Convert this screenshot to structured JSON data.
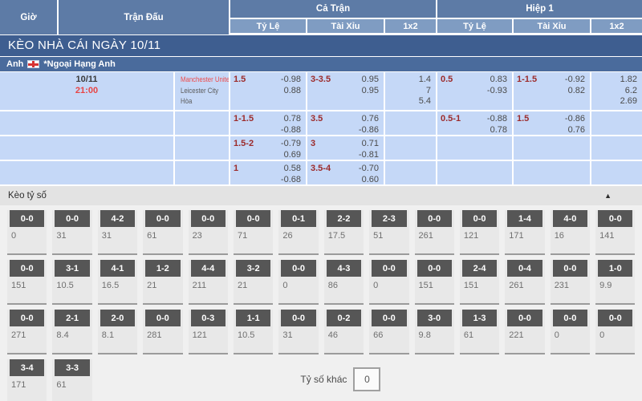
{
  "colors": {
    "header_dark_blue": "#5d7ba6",
    "header_light_blue": "#7f9cc2",
    "banner_blue": "#3e5e90",
    "league_blue": "#4a6b9c",
    "row_light_blue": "#c5d8f7",
    "handicap_red": "#9c2b2b",
    "team_red": "#ef4c4c",
    "score_box_gray": "#565656"
  },
  "icons": {
    "caret_up": "▲",
    "england_flag": "st-george-cross"
  },
  "header": {
    "time": "Giờ",
    "match": "Trận Đấu",
    "full": "Cả Trận",
    "half": "Hiệp 1",
    "hdp": "Tỷ Lệ",
    "ou": "Tài Xỉu",
    "x12": "1x2"
  },
  "banner": {
    "title": "KÈO NHÀ CÁI NGÀY 10/11"
  },
  "league": {
    "country": "Anh",
    "name": "*Ngoại Hạng Anh"
  },
  "odds_rows": [
    {
      "date": "10/11",
      "time": "21:00",
      "teams": [
        "Manchester United",
        "Leicester City",
        "Hòa"
      ],
      "ft_hdp": {
        "hc": "1.5",
        "v1": "-0.98",
        "v2": "0.88"
      },
      "ft_ou": {
        "hc": "3-3.5",
        "v1": "0.95",
        "v2": "0.95"
      },
      "ft_1x2": [
        "1.4",
        "7",
        "5.4"
      ],
      "h1_hdp": {
        "hc": "0.5",
        "v1": "0.83",
        "v2": "-0.93"
      },
      "h1_ou": {
        "hc": "1-1.5",
        "v1": "-0.92",
        "v2": "0.82"
      },
      "h1_1x2": [
        "1.82",
        "6.2",
        "2.69"
      ]
    },
    {
      "ft_hdp": {
        "hc": "1-1.5",
        "v1": "0.78",
        "v2": "-0.88"
      },
      "ft_ou": {
        "hc": "3.5",
        "v1": "0.76",
        "v2": "-0.86"
      },
      "ft_1x2": [],
      "h1_hdp": {
        "hc": "0.5-1",
        "v1": "-0.88",
        "v2": "0.78"
      },
      "h1_ou": {
        "hc": "1.5",
        "v1": "-0.86",
        "v2": "0.76"
      },
      "h1_1x2": []
    },
    {
      "ft_hdp": {
        "hc": "1.5-2",
        "v1": "-0.79",
        "v2": "0.69"
      },
      "ft_ou": {
        "hc": "3",
        "v1": "0.71",
        "v2": "-0.81"
      },
      "ft_1x2": [],
      "h1_hdp": null,
      "h1_ou": null,
      "h1_1x2": []
    },
    {
      "ft_hdp": {
        "hc": "1",
        "v1": "0.58",
        "v2": "-0.68"
      },
      "ft_ou": {
        "hc": "3.5-4",
        "v1": "-0.70",
        "v2": "0.60"
      },
      "ft_1x2": [],
      "h1_hdp": null,
      "h1_ou": null,
      "h1_1x2": []
    }
  ],
  "correct_score": {
    "section_title": "Kèo tỷ số",
    "other_label": "Tỷ số khác",
    "other_value": "0",
    "rows": [
      [
        {
          "s": "0-0",
          "o": "0"
        },
        {
          "s": "0-0",
          "o": "31"
        },
        {
          "s": "4-2",
          "o": "31"
        },
        {
          "s": "0-0",
          "o": "61"
        },
        {
          "s": "0-0",
          "o": "23"
        },
        {
          "s": "0-0",
          "o": "71"
        },
        {
          "s": "0-1",
          "o": "26"
        },
        {
          "s": "2-2",
          "o": "17.5"
        },
        {
          "s": "2-3",
          "o": "51"
        },
        {
          "s": "0-0",
          "o": "261"
        },
        {
          "s": "0-0",
          "o": "121"
        },
        {
          "s": "1-4",
          "o": "171"
        },
        {
          "s": "4-0",
          "o": "16"
        },
        {
          "s": "0-0",
          "o": "141"
        }
      ],
      [
        {
          "s": "0-0",
          "o": "151"
        },
        {
          "s": "3-1",
          "o": "10.5"
        },
        {
          "s": "4-1",
          "o": "16.5"
        },
        {
          "s": "1-2",
          "o": "21"
        },
        {
          "s": "4-4",
          "o": "211"
        },
        {
          "s": "3-2",
          "o": "21"
        },
        {
          "s": "0-0",
          "o": "0"
        },
        {
          "s": "4-3",
          "o": "86"
        },
        {
          "s": "0-0",
          "o": "0"
        },
        {
          "s": "0-0",
          "o": "151"
        },
        {
          "s": "2-4",
          "o": "151"
        },
        {
          "s": "0-4",
          "o": "261"
        },
        {
          "s": "0-0",
          "o": "231"
        },
        {
          "s": "1-0",
          "o": "9.9"
        }
      ],
      [
        {
          "s": "0-0",
          "o": "271"
        },
        {
          "s": "2-1",
          "o": "8.4"
        },
        {
          "s": "2-0",
          "o": "8.1"
        },
        {
          "s": "0-0",
          "o": "281"
        },
        {
          "s": "0-3",
          "o": "121"
        },
        {
          "s": "1-1",
          "o": "10.5"
        },
        {
          "s": "0-0",
          "o": "31"
        },
        {
          "s": "0-2",
          "o": "46"
        },
        {
          "s": "0-0",
          "o": "66"
        },
        {
          "s": "3-0",
          "o": "9.8"
        },
        {
          "s": "1-3",
          "o": "61"
        },
        {
          "s": "0-0",
          "o": "221"
        },
        {
          "s": "0-0",
          "o": "0"
        },
        {
          "s": "0-0",
          "o": "0"
        }
      ],
      [
        {
          "s": "3-4",
          "o": "171"
        },
        {
          "s": "3-3",
          "o": "61"
        }
      ]
    ]
  }
}
